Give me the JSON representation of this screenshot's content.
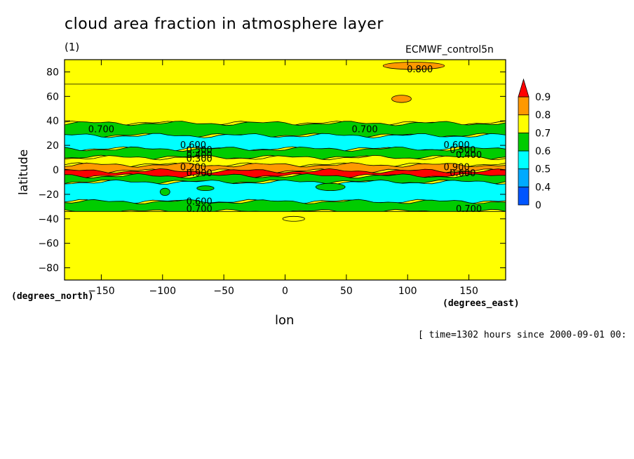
{
  "chart_data": {
    "type": "heatmap",
    "title": "cloud area fraction in atmosphere layer",
    "subtitle": "(1)",
    "model": "ECMWF_control5n",
    "xlabel": "lon",
    "ylabel": "latitude",
    "x_unit": "(degrees_east)",
    "y_unit": "(degrees_north)",
    "time_note": "[ time=1302 hours since 2000-09-01 00:",
    "xlim": [
      -180,
      180
    ],
    "ylim": [
      -90,
      90
    ],
    "x_ticks": [
      -150,
      -100,
      -50,
      0,
      50,
      100,
      150
    ],
    "y_ticks": [
      80,
      60,
      40,
      20,
      0,
      -20,
      -40,
      -60,
      -80
    ],
    "colorbar": {
      "levels": [
        0,
        0.4,
        0.5,
        0.6,
        0.7,
        0.8,
        0.9
      ],
      "labels": [
        "0",
        "0.4",
        "0.5",
        "0.6",
        "0.7",
        "0.8",
        "0.9"
      ],
      "colors": [
        "#0055ff",
        "#00aaff",
        "#00ffff",
        "#00cc00",
        "#ffff00",
        "#ff9900",
        "#ff0000"
      ]
    },
    "latitude_bands": [
      {
        "lat_range": [
          70,
          90
        ],
        "value_class": "0.7-0.8"
      },
      {
        "lat_range": [
          38,
          70
        ],
        "value_class": "0.7-0.8"
      },
      {
        "lat_range": [
          28,
          38
        ],
        "value_class": "0.6-0.7"
      },
      {
        "lat_range": [
          17,
          28
        ],
        "value_class": "0.5-0.6"
      },
      {
        "lat_range": [
          10,
          17
        ],
        "value_class": "0.6-0.7"
      },
      {
        "lat_range": [
          4,
          10
        ],
        "value_class": "0.7-0.8"
      },
      {
        "lat_range": [
          -1,
          4
        ],
        "value_class": "0.8-0.9"
      },
      {
        "lat_range": [
          -5,
          -1
        ],
        "value_class": "0.9+"
      },
      {
        "lat_range": [
          -10,
          -5
        ],
        "value_class": "0.6-0.7"
      },
      {
        "lat_range": [
          -26,
          -10
        ],
        "value_class": "0.5-0.6"
      },
      {
        "lat_range": [
          -34,
          -26
        ],
        "value_class": "0.6-0.7"
      },
      {
        "lat_range": [
          -90,
          -34
        ],
        "value_class": "0.7-0.8"
      }
    ],
    "contour_labels": [
      "0.800",
      "0.700",
      "0.700",
      "0.600",
      "0.500",
      "0.400",
      "0.300",
      "0.200",
      "0.900",
      "0.600",
      "0.700",
      "0.600",
      "0.500",
      "0.400",
      "0.900",
      "0.600",
      "0.700"
    ]
  }
}
